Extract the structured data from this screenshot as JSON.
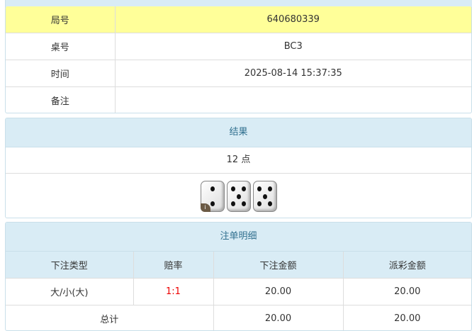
{
  "info": {
    "rows": [
      {
        "label": "局号",
        "value": "640680339"
      },
      {
        "label": "桌号",
        "value": "BC3"
      },
      {
        "label": "时间",
        "value": "2025-08-14 15:37:35"
      },
      {
        "label": "备注",
        "value": ""
      }
    ]
  },
  "result": {
    "title": "结果",
    "points": "12 点",
    "dice": [
      2,
      5,
      5
    ],
    "info_badge": "i"
  },
  "bets": {
    "title": "注单明细",
    "headers": [
      "下注类型",
      "赔率",
      "下注金额",
      "派彩金额"
    ],
    "rows": [
      {
        "type": "大/小(大)",
        "odds": "1:1",
        "amount": "20.00",
        "payout": "20.00"
      }
    ],
    "total": {
      "label": "总计",
      "amount": "20.00",
      "payout": "20.00"
    },
    "odds_color": "#ee0000"
  }
}
